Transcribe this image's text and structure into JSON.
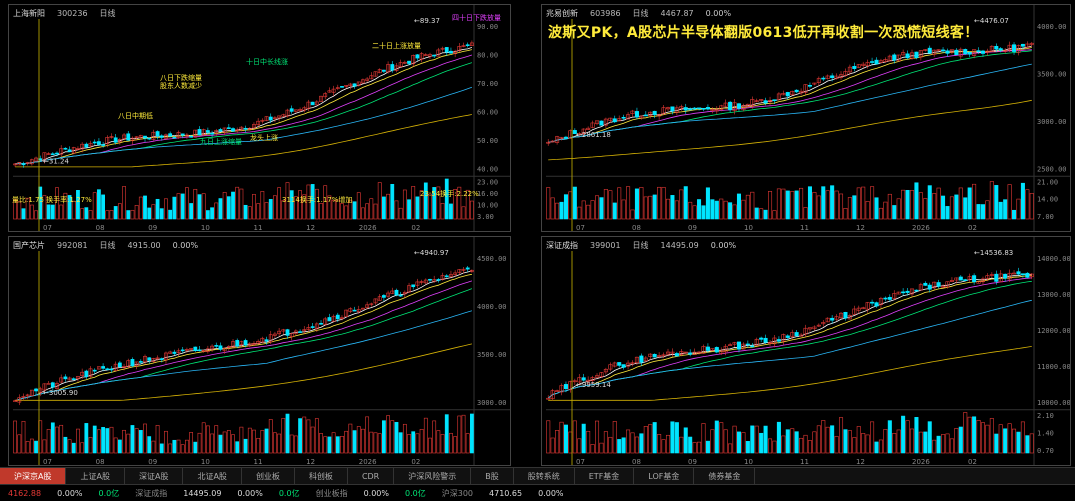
{
  "panels": [
    {
      "id": "tl",
      "name": "上海新阳",
      "code": "300236",
      "period": "日线",
      "price": "",
      "pct": "",
      "yticks": [
        "90.00",
        "80.00",
        "70.00",
        "60.00",
        "50.00",
        "40.00"
      ],
      "vol_ticks": [
        "23.00",
        "16.00",
        "10.00",
        "3.00"
      ],
      "xticks": [
        "07",
        "08",
        "09",
        "10",
        "11",
        "12",
        "2026",
        "02"
      ],
      "high_label": "89.37",
      "low_label": "31.24"
    },
    {
      "id": "tr",
      "name": "兆易创新",
      "code": "603986",
      "period": "日线",
      "price": "4467.87",
      "pct": "0.00%",
      "yticks": [
        "4000.00",
        "3500.00",
        "3000.00",
        "2500.00"
      ],
      "vol_ticks": [
        "21.00",
        "14.00",
        "7.00"
      ],
      "xticks": [
        "07",
        "08",
        "09",
        "10",
        "11",
        "12",
        "2026",
        "02"
      ],
      "high_label": "4476.07",
      "low_label": "2861.18"
    },
    {
      "id": "bl",
      "name": "国产芯片",
      "code": "992081",
      "period": "日线",
      "price": "4915.00",
      "pct": "0.00%",
      "yticks": [
        "4500.00",
        "4000.00",
        "3500.00",
        "3000.00"
      ],
      "vol_ticks": [],
      "xticks": [
        "07",
        "08",
        "09",
        "10",
        "11",
        "12",
        "2026",
        "02"
      ],
      "high_label": "4940.97",
      "low_label": "3005.90"
    },
    {
      "id": "br",
      "name": "深证成指",
      "code": "399001",
      "period": "日线",
      "price": "14495.09",
      "pct": "0.00%",
      "yticks": [
        "14000.00",
        "13000.00",
        "12000.00",
        "11000.00",
        "10000.00"
      ],
      "vol_ticks": [
        "2.10",
        "1.40",
        "0.70"
      ],
      "xticks": [
        "07",
        "08",
        "09",
        "10",
        "11",
        "12",
        "2026",
        "02"
      ],
      "high_label": "14536.83",
      "low_label": "9959.14"
    }
  ],
  "overlay_title": "波斯又PK，A股芯片半导体翻版0613低开再收割一次恐慌短线客！",
  "annotations": [
    {
      "text": "八日下跌缩量",
      "cls": ""
    },
    {
      "text": "股东人数减少",
      "cls": ""
    },
    {
      "text": "八日中期低",
      "cls": ""
    },
    {
      "text": "十日中长线涨",
      "cls": "green"
    },
    {
      "text": "九日上涨缩量",
      "cls": "green"
    },
    {
      "text": "二十日上涨放量",
      "cls": ""
    },
    {
      "text": "四十日下跌放量",
      "cls": "mag"
    },
    {
      "text": "龙头上涨",
      "cls": ""
    }
  ],
  "vol_annots": [
    "量比:1.75 换手率:1.27%",
    "3114换手:1.17%增加",
    "23:54换手:2.22%"
  ],
  "tabs": [
    {
      "label": "沪深京A股",
      "active": true
    },
    {
      "label": "上证A股",
      "active": false
    },
    {
      "label": "深证A股",
      "active": false
    },
    {
      "label": "北证A股",
      "active": false
    },
    {
      "label": "创业板",
      "active": false
    },
    {
      "label": "科创板",
      "active": false
    },
    {
      "label": "CDR",
      "active": false
    },
    {
      "label": "沪深风险警示",
      "active": false
    },
    {
      "label": "B股",
      "active": false
    },
    {
      "label": "股转系统",
      "active": false
    },
    {
      "label": "ETF基金",
      "active": false
    },
    {
      "label": "LOF基金",
      "active": false
    },
    {
      "label": "债券基金",
      "active": false
    }
  ],
  "status": [
    {
      "text": "4162.88",
      "cls": "red"
    },
    {
      "text": "0.00%",
      "cls": "white"
    },
    {
      "text": "0.0亿",
      "cls": "green"
    },
    {
      "text": "深证成指",
      "cls": "gray"
    },
    {
      "text": "14495.09",
      "cls": "white"
    },
    {
      "text": "0.00%",
      "cls": "white"
    },
    {
      "text": "0.0亿",
      "cls": "green"
    },
    {
      "text": "创业板指",
      "cls": "gray"
    },
    {
      "text": "0.00%",
      "cls": "white"
    },
    {
      "text": "0.0亿",
      "cls": "green"
    },
    {
      "text": "沪深300",
      "cls": "gray"
    },
    {
      "text": "4710.65",
      "cls": "white"
    },
    {
      "text": "0.00%",
      "cls": "white"
    }
  ]
}
